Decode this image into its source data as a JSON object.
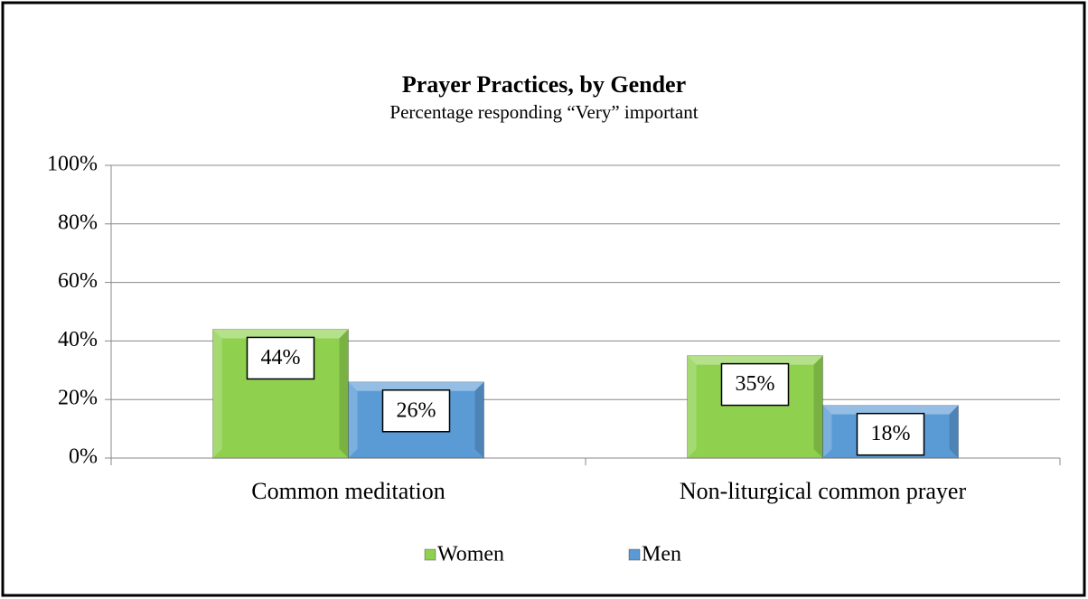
{
  "chart_data": {
    "type": "bar",
    "title": "Prayer Practices, by Gender",
    "subtitle": "Percentage responding “Very” important",
    "categories": [
      "Common meditation",
      "Non-liturgical common prayer"
    ],
    "series": [
      {
        "name": "Women",
        "color": "#8fd14f",
        "values": [
          44,
          35
        ],
        "value_labels": [
          "44%",
          "35%"
        ]
      },
      {
        "name": "Men",
        "color": "#5b9bd5",
        "values": [
          26,
          18
        ],
        "value_labels": [
          "26%",
          "18%"
        ]
      }
    ],
    "ylim": [
      0,
      100
    ],
    "yticks": [
      {
        "value": 0,
        "label": "0%"
      },
      {
        "value": 20,
        "label": "20%"
      },
      {
        "value": 40,
        "label": "40%"
      },
      {
        "value": 60,
        "label": "60%"
      },
      {
        "value": 80,
        "label": "80%"
      },
      {
        "value": 100,
        "label": "100%"
      }
    ],
    "grid": true,
    "legend": "bottom"
  }
}
